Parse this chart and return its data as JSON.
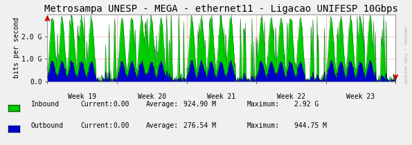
{
  "title": "Metrosampa UNESP - MEGA - ethernet11 - Ligacao UNIFESP 10Gbps",
  "ylabel": "bits per second",
  "xlabel_ticks": [
    "Week 19",
    "Week 20",
    "Week 21",
    "Week 22",
    "Week 23"
  ],
  "ytick_labels": [
    "0.0",
    "1.0 G",
    "2.0 G"
  ],
  "ytick_values": [
    0.0,
    1000000000.0,
    2000000000.0
  ],
  "ymax": 3000000000.0,
  "bg_color": "#f0f0f0",
  "plot_bg_color": "#ffffff",
  "grid_color": "#ff4444",
  "inbound_color": "#00cc00",
  "inbound_edge_color": "#006600",
  "outbound_color": "#0000cc",
  "outbound_edge_color": "#000088",
  "arrow_color": "#cc0000",
  "legend_inbound_label": "Inbound",
  "legend_outbound_label": "Outbound",
  "legend_current_label": "Current:",
  "legend_average_label": "Average:",
  "legend_maximum_label": "Maximum:",
  "inbound_current": "0.00",
  "inbound_average": "924.90 M",
  "inbound_maximum": "2.92 G",
  "outbound_current": "0.00",
  "outbound_average": "276.54 M",
  "outbound_maximum": "944.75 M",
  "sidebar_text": "RRDTOOL / TOBI OETIKER",
  "title_fontsize": 10,
  "axis_fontsize": 7,
  "legend_fontsize": 7,
  "num_points": 1000,
  "inbound_avg": 924900000.0,
  "inbound_max": 2920000000.0,
  "outbound_avg": 276540000.0,
  "outbound_max": 944750000.0
}
